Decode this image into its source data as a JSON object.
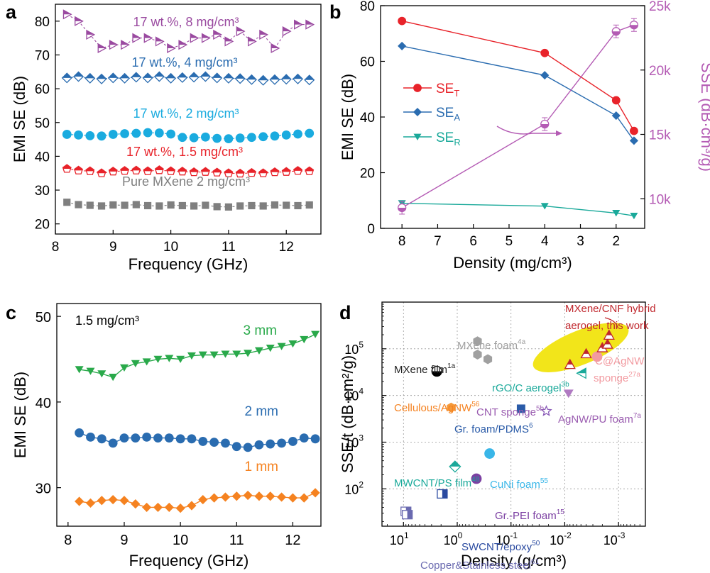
{
  "panels": {
    "a": {
      "letter": "a"
    },
    "b": {
      "letter": "b"
    },
    "c": {
      "letter": "c",
      "note": "1.5 mg/cm³"
    },
    "d": {
      "letter": "d"
    }
  },
  "colors": {
    "purple": "#9a4aa0",
    "blue": "#2a6cb0",
    "cyan": "#1aabdf",
    "red": "#e8232a",
    "gray": "#7f7f7f",
    "teal": "#1aa99a",
    "green": "#29a94a",
    "orange": "#f58220",
    "highlight": "#f2e51a"
  },
  "chart_data": [
    {
      "panel": "a",
      "type": "scatter",
      "xlabel": "Frequency (GHz)",
      "ylabel": "EMI SE (dB)",
      "xlim": [
        8,
        12.6
      ],
      "ylim": [
        17,
        85
      ],
      "xticks": [
        8,
        9,
        10,
        11,
        12
      ],
      "yticks": [
        20,
        30,
        40,
        50,
        60,
        70,
        80
      ],
      "x": [
        8.2,
        8.4,
        8.6,
        8.8,
        9.0,
        9.2,
        9.4,
        9.6,
        9.8,
        10.0,
        10.2,
        10.4,
        10.6,
        10.8,
        11.0,
        11.2,
        11.4,
        11.6,
        11.8,
        12.0,
        12.2,
        12.4
      ],
      "series": [
        {
          "name": "17 wt.%, 8 mg/cm³",
          "color": "#9a4aa0",
          "marker": "triangle-right",
          "dashed": true,
          "values": [
            82,
            80,
            76,
            72,
            73,
            73,
            75,
            75,
            74,
            72,
            73,
            75,
            75,
            76,
            74,
            77,
            74,
            76,
            72,
            77,
            79,
            79
          ]
        },
        {
          "name": "17 wt.%, 4 mg/cm³",
          "color": "#2a6cb0",
          "marker": "diamond-half",
          "dashed": true,
          "values": [
            63.2,
            63.6,
            63.1,
            62.9,
            63.2,
            63.1,
            63.4,
            63.2,
            63.6,
            63.1,
            63.3,
            63.4,
            63.6,
            63.2,
            63.1,
            63.0,
            62.7,
            62.5,
            62.7,
            62.8,
            62.9,
            62.6
          ]
        },
        {
          "name": "17 wt.%, 2 mg/cm³",
          "color": "#1aabdf",
          "marker": "circle",
          "dashed": true,
          "values": [
            46.5,
            46.3,
            46.1,
            46.0,
            46.5,
            46.7,
            46.8,
            47.0,
            46.9,
            46.6,
            45.6,
            45.5,
            45.7,
            45.3,
            45.2,
            45.4,
            45.6,
            45.8,
            46.0,
            46.3,
            46.6,
            46.8
          ]
        },
        {
          "name": "17 wt.%, 1.5 mg/cm³",
          "color": "#e8232a",
          "marker": "pentagon-half",
          "dashed": true,
          "values": [
            36.3,
            35.8,
            35.6,
            35.0,
            35.5,
            35.7,
            35.8,
            35.6,
            35.9,
            35.6,
            35.5,
            35.3,
            35.4,
            35.2,
            35.0,
            34.9,
            35.1,
            35.0,
            35.3,
            35.4,
            35.7,
            35.6
          ]
        },
        {
          "name": "Pure MXene 2 mg/cm³",
          "color": "#7f7f7f",
          "marker": "square",
          "dashed": true,
          "values": [
            26.4,
            25.7,
            25.5,
            25.3,
            25.6,
            25.5,
            25.7,
            25.4,
            25.3,
            25.6,
            25.4,
            25.3,
            25.5,
            25.1,
            25.0,
            25.3,
            25.4,
            25.3,
            25.6,
            25.5,
            25.4,
            25.6
          ]
        }
      ]
    },
    {
      "panel": "b",
      "type": "line",
      "xlabel": "Density (mg/cm³)",
      "ylabel": "EMI SE (dB)",
      "y2label": "SSE (dB·cm³/g)",
      "x_reversed": true,
      "xlim": [
        8.6,
        1.2
      ],
      "ylim": [
        0,
        80
      ],
      "y2lim": [
        7700,
        25000
      ],
      "xticks": [
        8,
        7,
        6,
        5,
        4,
        3,
        2
      ],
      "yticks": [
        0,
        20,
        40,
        60,
        80
      ],
      "y2ticks": [
        10000,
        15000,
        20000,
        25000
      ],
      "y2ticklabels": [
        "10k",
        "15k",
        "20k",
        "25k"
      ],
      "x": [
        8,
        4,
        2,
        1.5
      ],
      "series": [
        {
          "name": "SE",
          "subscript": "T",
          "color": "#e8232a",
          "marker": "circle",
          "values": [
            74.5,
            63,
            46,
            35
          ]
        },
        {
          "name": "SE",
          "subscript": "A",
          "color": "#2a6cb0",
          "marker": "diamond",
          "values": [
            65.5,
            55,
            40.5,
            31.5
          ]
        },
        {
          "name": "SE",
          "subscript": "R",
          "color": "#1aa99a",
          "marker": "triangle-down",
          "values": [
            9,
            8,
            5.5,
            4.5
          ]
        },
        {
          "name": "SSE",
          "color": "#b45bb4",
          "marker": "circle-half",
          "axis": "right",
          "values": [
            9300,
            15800,
            23000,
            23500
          ]
        }
      ]
    },
    {
      "panel": "c",
      "type": "line",
      "xlabel": "Frequency (GHz)",
      "ylabel": "EMI SE (dB)",
      "xlim": [
        7.8,
        12.5
      ],
      "ylim": [
        25.5,
        51.5
      ],
      "xticks": [
        8,
        9,
        10,
        11,
        12
      ],
      "yticks": [
        30,
        40,
        50
      ],
      "x": [
        8.2,
        8.4,
        8.6,
        8.8,
        9.0,
        9.2,
        9.4,
        9.6,
        9.8,
        10.0,
        10.2,
        10.4,
        10.6,
        10.8,
        11.0,
        11.2,
        11.4,
        11.6,
        11.8,
        12.0,
        12.2,
        12.4
      ],
      "series": [
        {
          "name": "3 mm",
          "color": "#29a94a",
          "marker": "triangle-down",
          "values": [
            43.8,
            43.6,
            43.3,
            42.9,
            44.0,
            44.5,
            44.7,
            45.0,
            45.1,
            45.0,
            45.4,
            45.5,
            45.5,
            45.6,
            45.6,
            45.7,
            46.0,
            46.3,
            46.5,
            46.8,
            47.3,
            47.9
          ]
        },
        {
          "name": "2 mm",
          "color": "#2a6cb0",
          "marker": "circle",
          "values": [
            36.4,
            35.9,
            35.7,
            35.2,
            35.8,
            35.8,
            35.9,
            35.8,
            35.8,
            35.7,
            35.7,
            35.4,
            35.3,
            35.2,
            34.8,
            34.7,
            35.0,
            35.1,
            35.2,
            35.4,
            35.8,
            35.7
          ]
        },
        {
          "name": "1 mm",
          "color": "#f58220",
          "marker": "diamond",
          "values": [
            28.4,
            28.2,
            28.5,
            28.6,
            28.5,
            28.1,
            27.7,
            27.7,
            27.7,
            27.6,
            27.9,
            28.6,
            28.8,
            28.9,
            29.0,
            29.1,
            29.0,
            29.0,
            28.9,
            28.8,
            28.8,
            29.4
          ]
        }
      ]
    },
    {
      "panel": "d",
      "type": "scatter",
      "xlabel": "Density (g/cm³)",
      "ylabel": "SSE/t (dB·cm²/g)",
      "x_scale": "log",
      "y_scale": "log",
      "x_reversed": true,
      "xlim_exp": [
        1.4,
        -3.5
      ],
      "ylim_exp": [
        1.2,
        6.0
      ],
      "xticks_exp": [
        1,
        0,
        -1,
        -2,
        -3
      ],
      "yticks_exp": [
        2,
        3,
        4,
        5
      ],
      "grid": true,
      "points": [
        {
          "name": "MXene foam",
          "ref": "4a",
          "color": "#a0a0a0",
          "marker": "hexagon",
          "x": 0.42,
          "y": 145000
        },
        {
          "name": "MXene foam",
          "ref": "4a",
          "color": "#a0a0a0",
          "marker": "hexagon",
          "x": 0.42,
          "y": 75000
        },
        {
          "name": "MXene foam",
          "ref": "4a",
          "color": "#a0a0a0",
          "marker": "hexagon",
          "x": 0.27,
          "y": 60000
        },
        {
          "name": "MXene film",
          "ref": "1a",
          "color": "#000000",
          "marker": "circle-half",
          "x": 2.4,
          "y": 33000
        },
        {
          "name": "Cellulous/AgNW",
          "ref": "56",
          "color": "#f59a3a",
          "marker": "hexagon",
          "x": 1.3,
          "y": 5500
        },
        {
          "name": "Gr. foam/PDMS",
          "ref": "6",
          "color": "#2a5ba8",
          "marker": "square",
          "x": 0.065,
          "y": 5200
        },
        {
          "name": "CNT sponge",
          "ref": "5b",
          "color": "#b07ac2",
          "marker": "triangle-down",
          "x": 0.0085,
          "y": 11000
        },
        {
          "name": "AgNW/PU foam",
          "ref": "7a",
          "color": "#8a5cb8",
          "marker": "star",
          "x": 0.022,
          "y": 4600
        },
        {
          "name": "rGO/C aerogel",
          "ref": "3b",
          "color": "#1aa99a",
          "marker": "triangle-left",
          "x": 0.0048,
          "y": 30000
        },
        {
          "name": "MWCNT/PS film",
          "ref": "48",
          "color": "#1aa99a",
          "marker": "diamond-half",
          "x": 1.1,
          "y": 300
        },
        {
          "name": "CuNi foam",
          "ref": "55",
          "color": "#39b6e8",
          "marker": "circle",
          "x": 0.25,
          "y": 570
        },
        {
          "name": "Gr.-PEI foam",
          "ref": "15",
          "color": "#7b3fa2",
          "marker": "circle",
          "x": 0.44,
          "y": 165
        },
        {
          "name": "SWCNT/epoxy",
          "ref": "50",
          "color": "#2a4aa0",
          "marker": "square-half",
          "x": 1.9,
          "y": 78
        },
        {
          "name": "Copper&Stainless steel",
          "ref": "61",
          "color": "#6a6ab0",
          "marker": "square-half",
          "x": 9.0,
          "y": 33
        },
        {
          "name": "Copper&Stainless steel",
          "ref": "61",
          "color": "#6a6ab0",
          "marker": "square-half",
          "x": 8.5,
          "y": 28
        },
        {
          "name": "C@AgNW sponge",
          "ref": "27a",
          "color": "#f29aa0",
          "marker": "circle",
          "x": 0.0025,
          "y": 68000
        },
        {
          "name": "MXene/CNF hybrid aerogel, this work",
          "color": "#c0272d",
          "marker": "triangle-half",
          "x": 0.008,
          "y": 46000
        },
        {
          "name": "MXene/CNF hybrid aerogel, this work",
          "color": "#c0272d",
          "marker": "triangle-half",
          "x": 0.004,
          "y": 78000
        },
        {
          "name": "MXene/CNF hybrid aerogel, this work",
          "color": "#c0272d",
          "marker": "triangle-half",
          "x": 0.002,
          "y": 105000
        },
        {
          "name": "MXene/CNF hybrid aerogel, this work",
          "color": "#c0272d",
          "marker": "triangle-half",
          "x": 0.0016,
          "y": 125000
        },
        {
          "name": "MXene/CNF hybrid aerogel, this work",
          "color": "#c0272d",
          "marker": "triangle-half",
          "x": 0.0015,
          "y": 195000
        }
      ],
      "labels": [
        {
          "text": "MXene/CNF hybrid",
          "color": "#c0272d"
        },
        {
          "text": "aerogel, this work",
          "color": "#c0272d"
        },
        {
          "text": "MXene foam",
          "sup": "4a",
          "color": "#a0a0a0"
        },
        {
          "text": "MXene film",
          "sup": "1a",
          "color": "#222222"
        },
        {
          "text": "rGO/C aerogel",
          "sup": "3b",
          "color": "#1aa99a"
        },
        {
          "text": "C@AgNW",
          "color": "#f29aa0"
        },
        {
          "text": "sponge",
          "sup": "27a",
          "color": "#f29aa0"
        },
        {
          "text": "Cellulous/AgNW",
          "sup": "56",
          "color": "#f58220"
        },
        {
          "text": "CNT sponge",
          "sup": "5b",
          "color": "#9a5cb0"
        },
        {
          "text": "AgNW/PU foam",
          "sup": "7a",
          "color": "#9a5cb0"
        },
        {
          "text": "Gr. foam/PDMS",
          "sup": "6",
          "color": "#2a5ba8"
        },
        {
          "text": "MWCNT/PS film",
          "sup": "48",
          "color": "#1aa99a"
        },
        {
          "text": "CuNi foam",
          "sup": "55",
          "color": "#39b6e8"
        },
        {
          "text": "Gr.-PEI foam",
          "sup": "15",
          "color": "#7b3fa2"
        },
        {
          "text": "SWCNT/epoxy",
          "sup": "50",
          "color": "#2a4aa0"
        },
        {
          "text": "Copper&Stainless steel",
          "sup": "61",
          "color": "#6a6ab0"
        }
      ]
    }
  ]
}
